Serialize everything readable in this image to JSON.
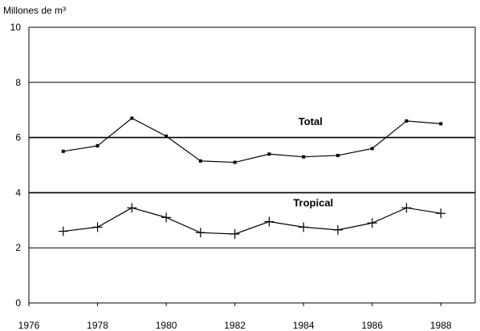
{
  "chart_data": {
    "type": "line",
    "ylabel": "Millones de m³",
    "xlim": [
      1976,
      1989
    ],
    "ylim": [
      0,
      10
    ],
    "xticks": [
      1976,
      1978,
      1980,
      1982,
      1984,
      1986,
      1988
    ],
    "xtick_labels": [
      "1976",
      "1978",
      "1980",
      "1982",
      "1984",
      "1986",
      "1988"
    ],
    "yticks": [
      0,
      2,
      4,
      6,
      8,
      10
    ],
    "ytick_labels": [
      "0",
      "2",
      "4",
      "6",
      "8",
      "10"
    ],
    "grid": "horizontal",
    "legend": "none",
    "series": [
      {
        "name": "Total",
        "marker": "dot",
        "x": [
          1977,
          1978,
          1979,
          1980,
          1981,
          1982,
          1983,
          1984,
          1985,
          1986,
          1987,
          1988
        ],
        "values": [
          5.5,
          5.7,
          6.7,
          6.05,
          5.15,
          5.1,
          5.4,
          5.3,
          5.35,
          5.6,
          6.6,
          6.5
        ]
      },
      {
        "name": "Tropical",
        "marker": "plus",
        "x": [
          1977,
          1978,
          1979,
          1980,
          1981,
          1982,
          1983,
          1984,
          1985,
          1986,
          1987,
          1988
        ],
        "values": [
          2.6,
          2.75,
          3.45,
          3.1,
          2.55,
          2.5,
          2.95,
          2.75,
          2.65,
          2.9,
          3.45,
          3.25
        ]
      }
    ]
  }
}
